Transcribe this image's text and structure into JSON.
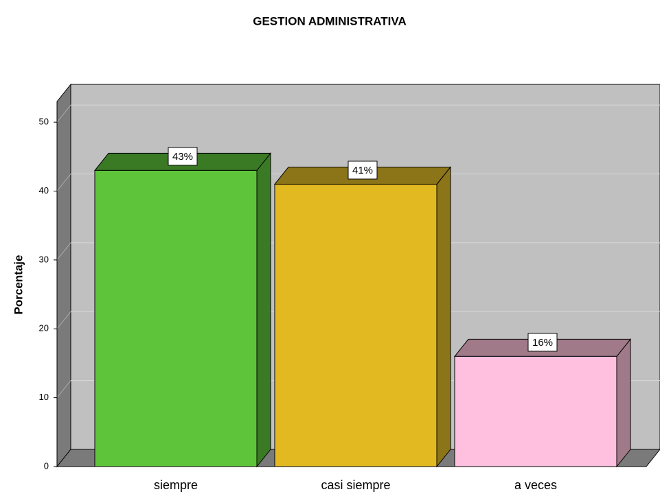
{
  "chart_data": {
    "type": "bar3d",
    "title": "GESTION ADMINISTRATIVA",
    "y_label": "Porcentaje",
    "categories": [
      "siempre",
      "casi siempre",
      "a veces"
    ],
    "values": [
      43,
      41,
      16
    ],
    "value_labels": [
      "43%",
      "41%",
      "16%"
    ],
    "colors": [
      "#5ec43a",
      "#e2b920",
      "#ffc0e0"
    ],
    "side_colors": [
      "#3a7a25",
      "#8c7418",
      "#a07a88"
    ],
    "ylim": [
      0,
      53
    ],
    "yticks": [
      0,
      10,
      20,
      30,
      40,
      50
    ],
    "grid": true
  }
}
